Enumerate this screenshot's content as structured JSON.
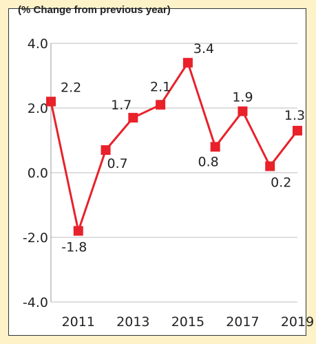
{
  "chart_data": {
    "type": "line",
    "unit_label": "(% Change from previous year)",
    "title": "",
    "xlabel": "",
    "ylabel": "",
    "x": [
      2010,
      2011,
      2012,
      2013,
      2014,
      2015,
      2016,
      2017,
      2018,
      2019
    ],
    "x_tick_labels": [
      "2011",
      "2013",
      "2015",
      "2017",
      "2019"
    ],
    "x_tick_values": [
      2011,
      2013,
      2015,
      2017,
      2019
    ],
    "y_tick_labels": [
      "4.0",
      "2.0",
      "0.0",
      "-2.0",
      "-4.0"
    ],
    "y_tick_values": [
      4,
      2,
      0,
      -2,
      -4
    ],
    "ylim": [
      -4,
      4
    ],
    "grid": true,
    "series": [
      {
        "values": [
          2.2,
          -1.8,
          0.7,
          1.7,
          2.1,
          3.4,
          0.8,
          1.9,
          0.2,
          1.3
        ],
        "labels": [
          "2.2",
          "-1.8",
          "0.7",
          "1.7",
          "2.1",
          "3.4",
          "0.8",
          "1.9",
          "0.2",
          "1.3"
        ],
        "color": "#e8212a"
      }
    ]
  }
}
